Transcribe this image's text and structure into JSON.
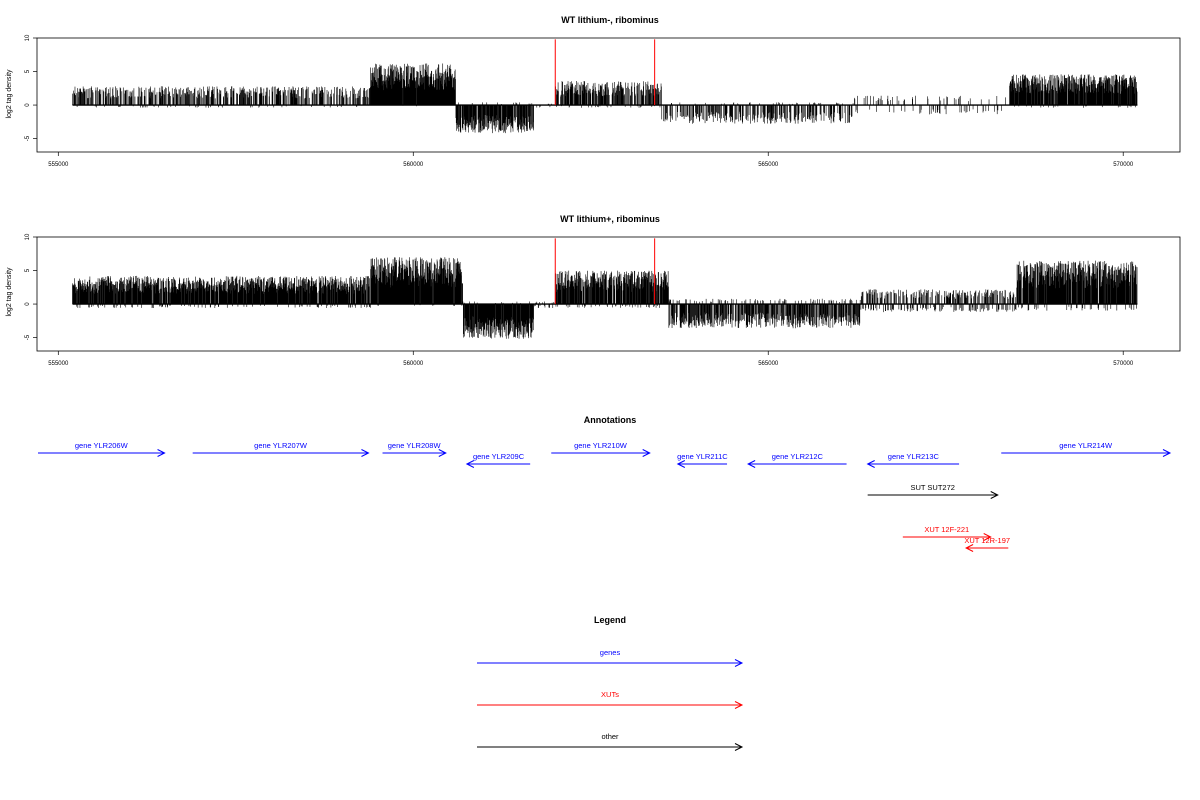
{
  "colors": {
    "genes": "#0000ff",
    "xuts": "#ff0000",
    "other": "#000000",
    "signal": "#000000",
    "highlight": "#ff0000"
  },
  "chart_data": [
    {
      "type": "bar",
      "title": "WT lithium-, ribominus",
      "ylabel": "log2 tag density",
      "xlim": [
        554700,
        570800
      ],
      "ylim": [
        -7,
        10
      ],
      "data_range": [
        555200,
        570200
      ],
      "x_ticks": [
        555000,
        560000,
        565000,
        570000
      ],
      "y_ticks": [
        10,
        5,
        0,
        -5
      ],
      "x_tick_labels": [
        "555000",
        "560000",
        "565000",
        "570000"
      ],
      "y_tick_labels": [
        "10",
        "5",
        "0",
        "-5"
      ],
      "grid": false,
      "highlight_lines": [
        {
          "x": 562000,
          "top": 9.8
        },
        {
          "x": 563400,
          "top": 9.8
        }
      ],
      "signal_profile": [
        {
          "from": 555200,
          "to": 559400,
          "plus": 2.8,
          "minus": 0.4,
          "density": 0.55
        },
        {
          "from": 559400,
          "to": 560600,
          "plus": 6.2,
          "minus": 0.2,
          "density": 1.0
        },
        {
          "from": 560600,
          "to": 561700,
          "plus": 0.4,
          "minus": 4.2,
          "density": 0.9
        },
        {
          "from": 561700,
          "to": 562000,
          "plus": 0.2,
          "minus": 0.4,
          "density": 0.2
        },
        {
          "from": 562000,
          "to": 563500,
          "plus": 3.6,
          "minus": 0.4,
          "density": 0.7
        },
        {
          "from": 563500,
          "to": 566200,
          "plus": 0.4,
          "minus": 2.8,
          "density": 0.5
        },
        {
          "from": 566200,
          "to": 568400,
          "plus": 1.4,
          "minus": 1.4,
          "density": 0.2
        },
        {
          "from": 568400,
          "to": 570200,
          "plus": 4.6,
          "minus": 0.4,
          "density": 0.95
        }
      ]
    },
    {
      "type": "bar",
      "title": "WT lithium+, ribominus",
      "ylabel": "log2 tag density",
      "xlim": [
        554700,
        570800
      ],
      "ylim": [
        -7,
        10
      ],
      "data_range": [
        555200,
        570200
      ],
      "x_ticks": [
        555000,
        560000,
        565000,
        570000
      ],
      "y_ticks": [
        10,
        5,
        0,
        -5
      ],
      "x_tick_labels": [
        "555000",
        "560000",
        "565000",
        "570000"
      ],
      "y_tick_labels": [
        "10",
        "5",
        "0",
        "-5"
      ],
      "grid": false,
      "highlight_lines": [
        {
          "x": 562000,
          "top": 9.8
        },
        {
          "x": 563400,
          "top": 9.8
        }
      ],
      "signal_profile": [
        {
          "from": 555200,
          "to": 559400,
          "plus": 4.2,
          "minus": 0.6,
          "density": 1.0
        },
        {
          "from": 559400,
          "to": 560700,
          "plus": 7.0,
          "minus": 0.3,
          "density": 1.0
        },
        {
          "from": 560700,
          "to": 561700,
          "plus": 0.4,
          "minus": 5.2,
          "density": 1.0
        },
        {
          "from": 561700,
          "to": 562000,
          "plus": 0.4,
          "minus": 0.6,
          "density": 0.3
        },
        {
          "from": 562000,
          "to": 563600,
          "plus": 5.0,
          "minus": 0.6,
          "density": 0.95
        },
        {
          "from": 563600,
          "to": 566300,
          "plus": 0.8,
          "minus": 3.6,
          "density": 0.8
        },
        {
          "from": 566300,
          "to": 568500,
          "plus": 2.2,
          "minus": 1.2,
          "density": 0.6
        },
        {
          "from": 568500,
          "to": 570200,
          "plus": 6.5,
          "minus": 1.0,
          "density": 1.0
        }
      ]
    }
  ],
  "annotations": {
    "title": "Annotations",
    "xlim": [
      554700,
      570800
    ],
    "features": [
      {
        "label": "gene YLR206W",
        "start": 554700,
        "end": 556500,
        "strand": "+",
        "kind": "genes",
        "row": 0
      },
      {
        "label": "gene YLR207W",
        "start": 556900,
        "end": 559400,
        "strand": "+",
        "kind": "genes",
        "row": 0
      },
      {
        "label": "gene YLR208W",
        "start": 559600,
        "end": 560500,
        "strand": "+",
        "kind": "genes",
        "row": 0
      },
      {
        "label": "gene YLR209C",
        "start": 560800,
        "end": 561700,
        "strand": "-",
        "kind": "genes",
        "row": 1
      },
      {
        "label": "gene YLR210W",
        "start": 562000,
        "end": 563400,
        "strand": "+",
        "kind": "genes",
        "row": 0
      },
      {
        "label": "gene YLR211C",
        "start": 563800,
        "end": 564500,
        "strand": "-",
        "kind": "genes",
        "row": 1
      },
      {
        "label": "gene YLR212C",
        "start": 564800,
        "end": 566200,
        "strand": "-",
        "kind": "genes",
        "row": 1
      },
      {
        "label": "gene YLR213C",
        "start": 566500,
        "end": 567800,
        "strand": "-",
        "kind": "genes",
        "row": 1
      },
      {
        "label": "gene YLR214W",
        "start": 568400,
        "end": 570800,
        "strand": "+",
        "kind": "genes",
        "row": 0
      },
      {
        "label": "SUT SUT272",
        "start": 566500,
        "end": 568350,
        "strand": "+",
        "kind": "other",
        "row": 2
      },
      {
        "label": "XUT 12F-221",
        "start": 567000,
        "end": 568250,
        "strand": "+",
        "kind": "xuts",
        "row": 3
      },
      {
        "label": "XUT 12R-197",
        "start": 567900,
        "end": 568500,
        "strand": "-",
        "kind": "xuts",
        "row": 4
      }
    ]
  },
  "legend": {
    "title": "Legend",
    "items": [
      {
        "label": "genes",
        "kind": "genes"
      },
      {
        "label": "XUTs",
        "kind": "xuts"
      },
      {
        "label": "other",
        "kind": "other"
      }
    ]
  }
}
